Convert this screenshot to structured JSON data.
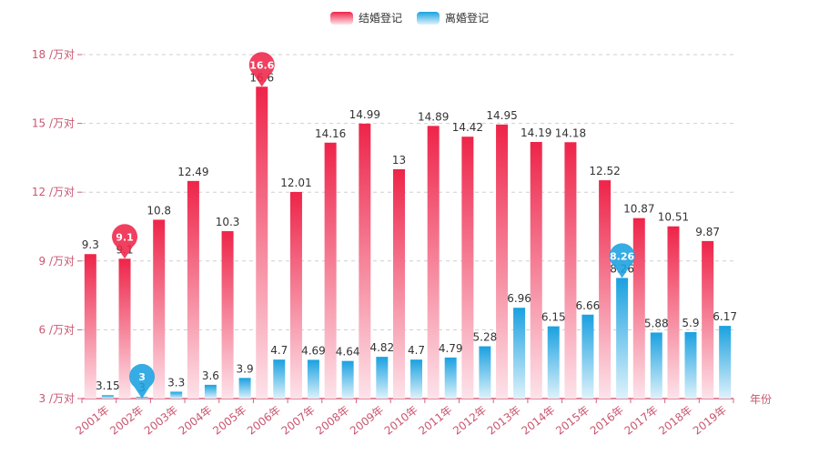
{
  "chart_data": {
    "type": "bar",
    "title": "",
    "xlabel": "年份",
    "ylabel": "",
    "y_unit_suffix": " /万对",
    "ylim": [
      3,
      18
    ],
    "yticks": [
      3,
      6,
      9,
      12,
      15,
      18
    ],
    "grid": true,
    "legend_position": "top-center",
    "categories": [
      "2001年",
      "2002年",
      "2003年",
      "2004年",
      "2005年",
      "2006年",
      "2007年",
      "2008年",
      "2009年",
      "2010年",
      "2011年",
      "2012年",
      "2013年",
      "2014年",
      "2015年",
      "2016年",
      "2017年",
      "2018年",
      "2019年"
    ],
    "series": [
      {
        "name": "结婚登记",
        "color_top": "#ee2449",
        "color_bottom": "#fde3ea",
        "values": [
          9.3,
          9.1,
          10.8,
          12.49,
          10.3,
          16.6,
          12.01,
          14.16,
          14.99,
          13,
          14.89,
          14.42,
          14.95,
          14.19,
          14.18,
          12.52,
          10.87,
          10.51,
          9.87
        ],
        "max_marker": {
          "category": "2006年",
          "value": 16.6
        },
        "min_marker": {
          "category": "2002年",
          "value": 9.1
        }
      },
      {
        "name": "离婚登记",
        "color_top": "#1aa1e0",
        "color_bottom": "#def2fb",
        "values": [
          3.15,
          3,
          3.3,
          3.6,
          3.9,
          4.7,
          4.69,
          4.64,
          4.82,
          4.7,
          4.79,
          5.28,
          6.96,
          6.15,
          6.66,
          8.26,
          5.88,
          5.9,
          6.17
        ],
        "max_marker": {
          "category": "2016年",
          "value": 8.26
        },
        "min_marker": {
          "category": "2002年",
          "value": 3
        }
      }
    ]
  },
  "colors": {
    "axis": "#d9607e",
    "axis_label": "#c9566f",
    "grid": "#cfcfcf",
    "value_label": "#333333"
  }
}
